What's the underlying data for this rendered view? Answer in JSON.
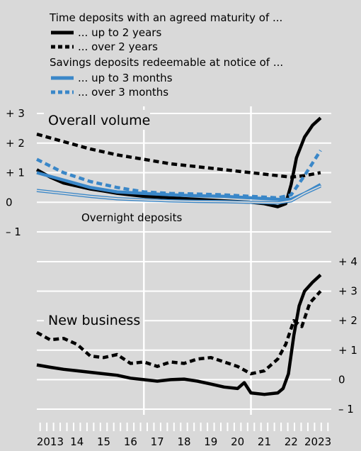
{
  "legend": {
    "time_header": "Time deposits with an agreed maturity of ...",
    "savings_header": "Savings deposits redeemable at notice of ...",
    "items": [
      {
        "label": "... up to 2 years",
        "color": "#000000",
        "dashed": false
      },
      {
        "label": "... over 2 years",
        "color": "#000000",
        "dashed": true
      },
      {
        "label": "... up to 3 months",
        "color": "#3a87c8",
        "dashed": false
      },
      {
        "label": "... over 3 months",
        "color": "#3a87c8",
        "dashed": true
      }
    ]
  },
  "chart_data": [
    {
      "type": "line",
      "title": "Overall volume",
      "annotation": "Overnight deposits",
      "ylim": [
        -1,
        3
      ],
      "y_ticks": [
        -1,
        0,
        1,
        2,
        3
      ],
      "y_tick_labels": [
        "– 1",
        "0",
        "+ 1",
        "+ 2",
        "+ 3"
      ],
      "x_tick_labels": [
        "2013",
        "14",
        "15",
        "16",
        "17",
        "18",
        "19",
        "20",
        "21",
        "22",
        "2023"
      ],
      "xlim": [
        2013,
        2024
      ],
      "vertical_lines": [
        2017,
        2021
      ],
      "series": [
        {
          "name": "... up to 2 years",
          "color": "#000000",
          "dashed": false,
          "x": [
            2013,
            2013.5,
            2014,
            2014.5,
            2015,
            2015.5,
            2016,
            2016.5,
            2017,
            2018,
            2019,
            2020,
            2021,
            2021.5,
            2022,
            2022.3,
            2022.5,
            2022.7,
            2023,
            2023.3,
            2023.6
          ],
          "y": [
            1.1,
            0.85,
            0.65,
            0.55,
            0.45,
            0.38,
            0.3,
            0.25,
            0.2,
            0.15,
            0.1,
            0.05,
            0.0,
            -0.05,
            -0.15,
            -0.05,
            0.6,
            1.5,
            2.2,
            2.6,
            2.85
          ]
        },
        {
          "name": "... over 2 years",
          "color": "#000000",
          "dashed": true,
          "x": [
            2013,
            2014,
            2015,
            2016,
            2017,
            2018,
            2019,
            2020,
            2021,
            2022,
            2022.5,
            2023,
            2023.6
          ],
          "y": [
            2.3,
            2.05,
            1.8,
            1.6,
            1.45,
            1.3,
            1.2,
            1.1,
            1.0,
            0.9,
            0.85,
            0.9,
            1.0
          ]
        },
        {
          "name": "... up to 3 months",
          "color": "#3a87c8",
          "dashed": false,
          "x": [
            2013,
            2014,
            2015,
            2016,
            2017,
            2018,
            2019,
            2020,
            2021,
            2022,
            2022.5,
            2023,
            2023.6
          ],
          "y": [
            1.0,
            0.75,
            0.5,
            0.35,
            0.3,
            0.25,
            0.22,
            0.2,
            0.15,
            0.1,
            0.1,
            0.3,
            0.6
          ]
        },
        {
          "name": "... over 3 months",
          "color": "#3a87c8",
          "dashed": true,
          "x": [
            2013,
            2014,
            2015,
            2016,
            2017,
            2018,
            2019,
            2020,
            2021,
            2022,
            2022.5,
            2023,
            2023.6
          ],
          "y": [
            1.45,
            1.0,
            0.7,
            0.5,
            0.35,
            0.3,
            0.28,
            0.25,
            0.2,
            0.15,
            0.25,
            0.9,
            1.75
          ]
        },
        {
          "name": "Overnight deposits",
          "color": "#3a87c8",
          "dashed": false,
          "thin": true,
          "x": [
            2013,
            2014,
            2015,
            2016,
            2017,
            2018,
            2019,
            2020,
            2021,
            2022,
            2022.5,
            2023,
            2023.6
          ],
          "y": [
            0.4,
            0.3,
            0.2,
            0.12,
            0.08,
            0.05,
            0.03,
            0.02,
            0.0,
            -0.02,
            0.05,
            0.3,
            0.55
          ]
        }
      ]
    },
    {
      "type": "line",
      "title": "New business",
      "ylim": [
        -1,
        4
      ],
      "y_ticks": [
        -1,
        0,
        1,
        2,
        3,
        4
      ],
      "y_tick_labels": [
        "– 1",
        "0",
        "+ 1",
        "+ 2",
        "+ 3",
        "+ 4"
      ],
      "x_tick_labels": [
        "2013",
        "14",
        "15",
        "16",
        "17",
        "18",
        "19",
        "20",
        "21",
        "22",
        "2023"
      ],
      "xlim": [
        2013,
        2024
      ],
      "vertical_lines": [
        2017,
        2021
      ],
      "series": [
        {
          "name": "... up to 2 years",
          "color": "#000000",
          "dashed": false,
          "x": [
            2013,
            2013.5,
            2014,
            2014.5,
            2015,
            2015.5,
            2016,
            2016.5,
            2017,
            2017.5,
            2018,
            2018.5,
            2019,
            2019.5,
            2020,
            2020.5,
            2020.75,
            2021,
            2021.5,
            2022,
            2022.2,
            2022.4,
            2022.6,
            2022.8,
            2023,
            2023.3,
            2023.6
          ],
          "y": [
            0.5,
            0.42,
            0.35,
            0.3,
            0.25,
            0.2,
            0.15,
            0.05,
            0.0,
            -0.05,
            0.0,
            0.02,
            -0.05,
            -0.15,
            -0.25,
            -0.3,
            -0.1,
            -0.45,
            -0.5,
            -0.45,
            -0.3,
            0.2,
            1.5,
            2.5,
            3.0,
            3.3,
            3.55
          ]
        },
        {
          "name": "... over 2 years",
          "color": "#000000",
          "dashed": true,
          "x": [
            2013,
            2013.5,
            2014,
            2014.5,
            2015,
            2015.5,
            2016,
            2016.5,
            2017,
            2017.5,
            2018,
            2018.5,
            2019,
            2019.5,
            2020,
            2020.5,
            2021,
            2021.5,
            2022,
            2022.3,
            2022.6,
            2022.9,
            2023.2,
            2023.6
          ],
          "y": [
            1.6,
            1.35,
            1.4,
            1.2,
            0.8,
            0.75,
            0.85,
            0.55,
            0.6,
            0.45,
            0.6,
            0.55,
            0.7,
            0.75,
            0.6,
            0.45,
            0.2,
            0.3,
            0.7,
            1.2,
            2.0,
            1.8,
            2.6,
            3.0
          ]
        }
      ]
    }
  ]
}
